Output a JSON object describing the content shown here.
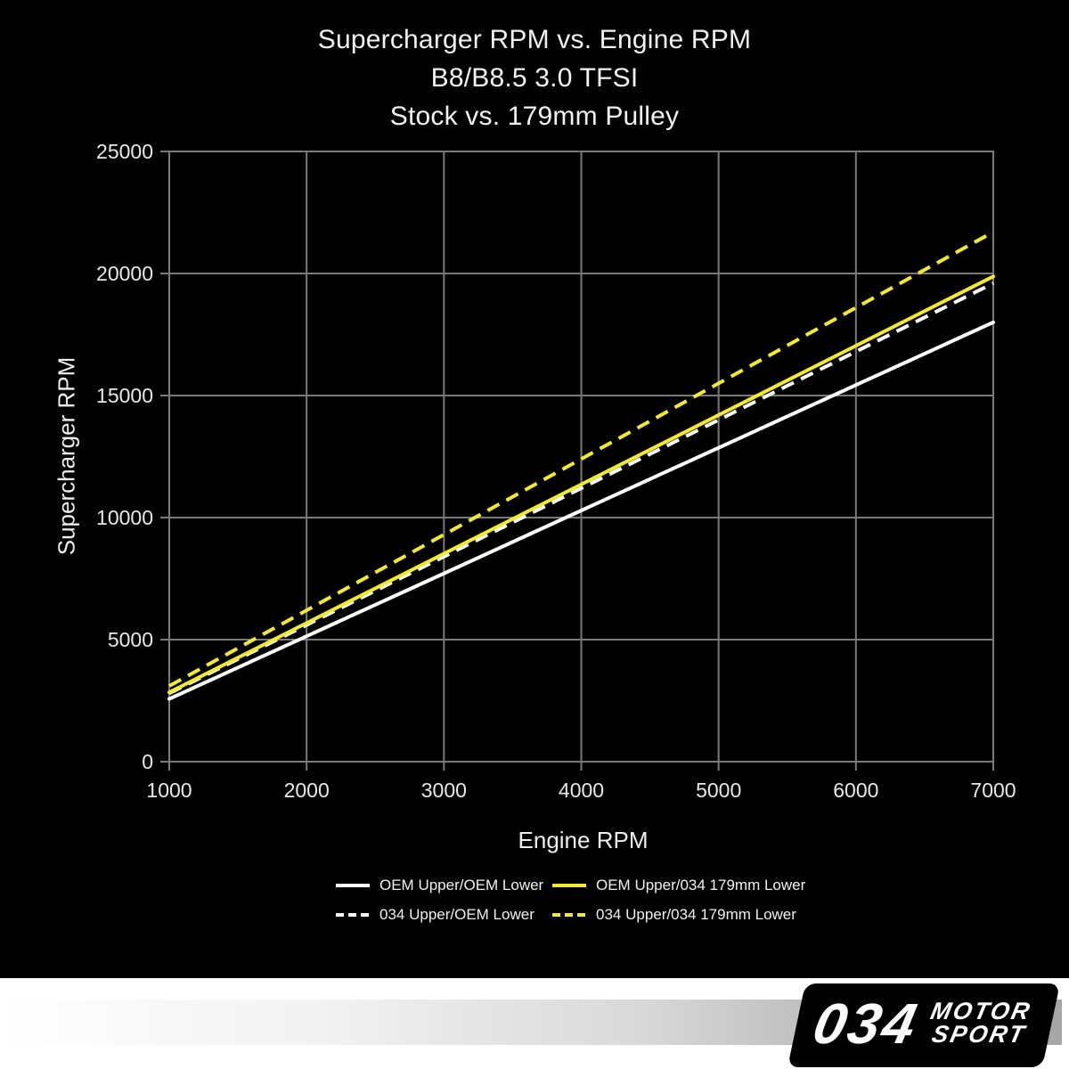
{
  "chart_data": {
    "type": "line",
    "title_lines": [
      "Supercharger RPM vs. Engine RPM",
      "B8/B8.5 3.0 TFSI",
      "Stock vs. 179mm Pulley"
    ],
    "xlabel": "Engine RPM",
    "ylabel": "Supercharger RPM",
    "xlim": [
      1000,
      7000
    ],
    "ylim": [
      0,
      25000
    ],
    "xticks": [
      1000,
      2000,
      3000,
      4000,
      5000,
      6000,
      7000
    ],
    "yticks": [
      0,
      5000,
      10000,
      15000,
      20000,
      25000
    ],
    "grid": true,
    "grid_color": "#7a7a7a",
    "tick_label_color": "#e8e8e8",
    "background_color": "#000000",
    "x": [
      1000,
      2000,
      3000,
      4000,
      5000,
      6000,
      7000
    ],
    "series": [
      {
        "name": "OEM Upper/OEM Lower",
        "color": "#ffffff",
        "style": "solid",
        "values": [
          2570,
          5140,
          7710,
          10290,
          12860,
          15430,
          18000
        ]
      },
      {
        "name": "034 Upper/OEM Lower",
        "color": "#ffffff",
        "style": "dashed",
        "values": [
          2800,
          5600,
          8400,
          11200,
          14000,
          16800,
          19600
        ]
      },
      {
        "name": "OEM Upper/034 179mm Lower",
        "color": "#f2ea32",
        "style": "solid",
        "values": [
          2840,
          5680,
          8520,
          11360,
          14200,
          17040,
          19880
        ]
      },
      {
        "name": "034 Upper/034 179mm Lower",
        "color": "#f2ea32",
        "style": "dashed",
        "values": [
          3100,
          6200,
          9300,
          12400,
          15500,
          18600,
          21700
        ]
      }
    ],
    "legend_position": "bottom",
    "legend_order": [
      0,
      2,
      1,
      3
    ]
  },
  "branding": {
    "logo_number": "034",
    "logo_word_top": "MOTOR",
    "logo_word_bottom": "SPORT"
  }
}
